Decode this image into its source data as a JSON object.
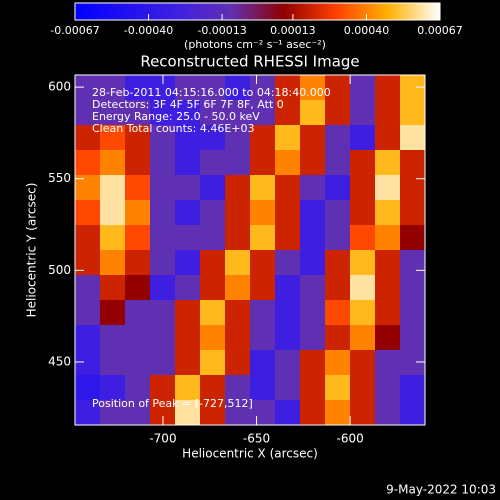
{
  "chart_data": {
    "type": "heatmap",
    "title": "Reconstructed RHESSI Image",
    "x_label": "Heliocentric X (arcsec)",
    "y_label": "Heliocentric Y (arcsec)",
    "colorbar_label": "(photons cm⁻² s⁻¹ asec⁻²)",
    "colormap": [
      "#0000ff",
      "#2010f0",
      "#4020e0",
      "#6030b0",
      "#900000",
      "#ff4000",
      "#ffb000",
      "#ffffff"
    ],
    "zlim": [
      -0.00067,
      0.00067
    ],
    "zticks": [
      -0.00067,
      {
        "value": -0.0004,
        "label": "-0.00040"
      },
      -0.00013,
      0.00013,
      {
        "value": 0.0004,
        "label": "0.00040"
      },
      0.00067
    ],
    "xlim": [
      -747,
      -560
    ],
    "xticks": [
      -700,
      -650,
      -600
    ],
    "ylim": [
      415.6,
      606.6
    ],
    "yticks": [
      450,
      500,
      550,
      600
    ],
    "annotations": [
      "28-Feb-2011 04:15:16.000 to 04:18:40.000",
      "Detectors: 3F 4F 5F 6F 7F 8F, Att 0",
      "Energy Range: 25.0 - 50.0 keV",
      "Clean     Total counts: 4.46E+03"
    ],
    "peak_label": "Position of Peak = [-727,512]",
    "timestamp": "9-May-2022 10:03",
    "z": [
      [
        -0.0001,
        -0.0001,
        -0.0003,
        -0.0003,
        -0.0001,
        -0.0001,
        -0.0003,
        -0.0001,
        0.0002,
        0.0004,
        0.0002,
        -0.0001,
        0.0002,
        0.0005
      ],
      [
        -0.0001,
        -0.0001,
        -0.0001,
        -0.0003,
        -0.0003,
        -0.0001,
        -0.0001,
        -0.0001,
        0.0002,
        0.0005,
        0.0002,
        -0.0001,
        0.0002,
        0.0005
      ],
      [
        0.0002,
        0.0003,
        0.0002,
        -0.0001,
        -0.0003,
        -0.0003,
        -0.0001,
        0.0002,
        0.0005,
        0.0002,
        -0.0001,
        -0.0003,
        0.0002,
        0.0006
      ],
      [
        0.0003,
        0.0004,
        0.0002,
        -0.0001,
        -0.0003,
        -0.0001,
        -0.0001,
        0.0002,
        0.0004,
        0.0002,
        -0.0001,
        0.0002,
        0.0005,
        0.0002
      ],
      [
        0.0004,
        0.0006,
        0.0003,
        -0.0001,
        -0.0001,
        -0.0003,
        0.0002,
        0.0005,
        0.0002,
        -0.0001,
        -0.0003,
        0.0002,
        0.0006,
        0.0002
      ],
      [
        0.0003,
        0.0006,
        0.0004,
        -0.0001,
        -0.0003,
        -0.0001,
        0.0002,
        0.0004,
        0.0002,
        -0.0003,
        -0.0001,
        0.0002,
        0.0005,
        0.0002
      ],
      [
        0.0002,
        0.0005,
        0.0003,
        -0.0001,
        -0.0001,
        -0.0001,
        0.0002,
        0.0005,
        0.0002,
        -0.0003,
        -0.0001,
        0.0003,
        0.0004,
        0.0001
      ],
      [
        0.0002,
        0.0004,
        0.0002,
        -0.0001,
        -0.0003,
        0.0002,
        0.0005,
        0.0002,
        -0.0001,
        -0.0003,
        0.0002,
        0.0005,
        0.0002,
        -0.0001
      ],
      [
        -0.0001,
        0.0002,
        0.0001,
        -0.0003,
        -0.0001,
        0.0002,
        0.0004,
        0.0002,
        -0.0003,
        -0.0001,
        0.0002,
        0.0006,
        0.0002,
        -0.0001
      ],
      [
        -0.0001,
        0.0001,
        -0.0001,
        -0.0001,
        0.0002,
        0.0005,
        0.0002,
        -0.0001,
        -0.0003,
        -0.0001,
        0.0003,
        0.0005,
        0.0002,
        -0.0001
      ],
      [
        -0.0003,
        -0.0001,
        -0.0001,
        -0.0001,
        0.0002,
        0.0004,
        0.0002,
        -0.0001,
        -0.0003,
        -0.0001,
        0.0002,
        0.0004,
        0.0001,
        -0.0001
      ],
      [
        -0.0003,
        -0.0001,
        -0.0001,
        -0.0001,
        0.0002,
        0.0005,
        0.0002,
        -0.0003,
        -0.0001,
        0.0002,
        0.0004,
        0.0002,
        -0.0001,
        -0.0001
      ],
      [
        -0.0004,
        -0.0003,
        -0.0001,
        0.0002,
        0.0005,
        0.0002,
        -0.0001,
        -0.0003,
        -0.0001,
        0.0002,
        0.0005,
        0.0002,
        -0.0001,
        -0.0003
      ],
      [
        -0.0003,
        -0.0001,
        -0.0001,
        0.0002,
        0.0006,
        0.0002,
        -0.0001,
        -0.0001,
        -0.0003,
        0.0002,
        0.0004,
        0.0002,
        -0.0001,
        -0.0003
      ]
    ]
  }
}
